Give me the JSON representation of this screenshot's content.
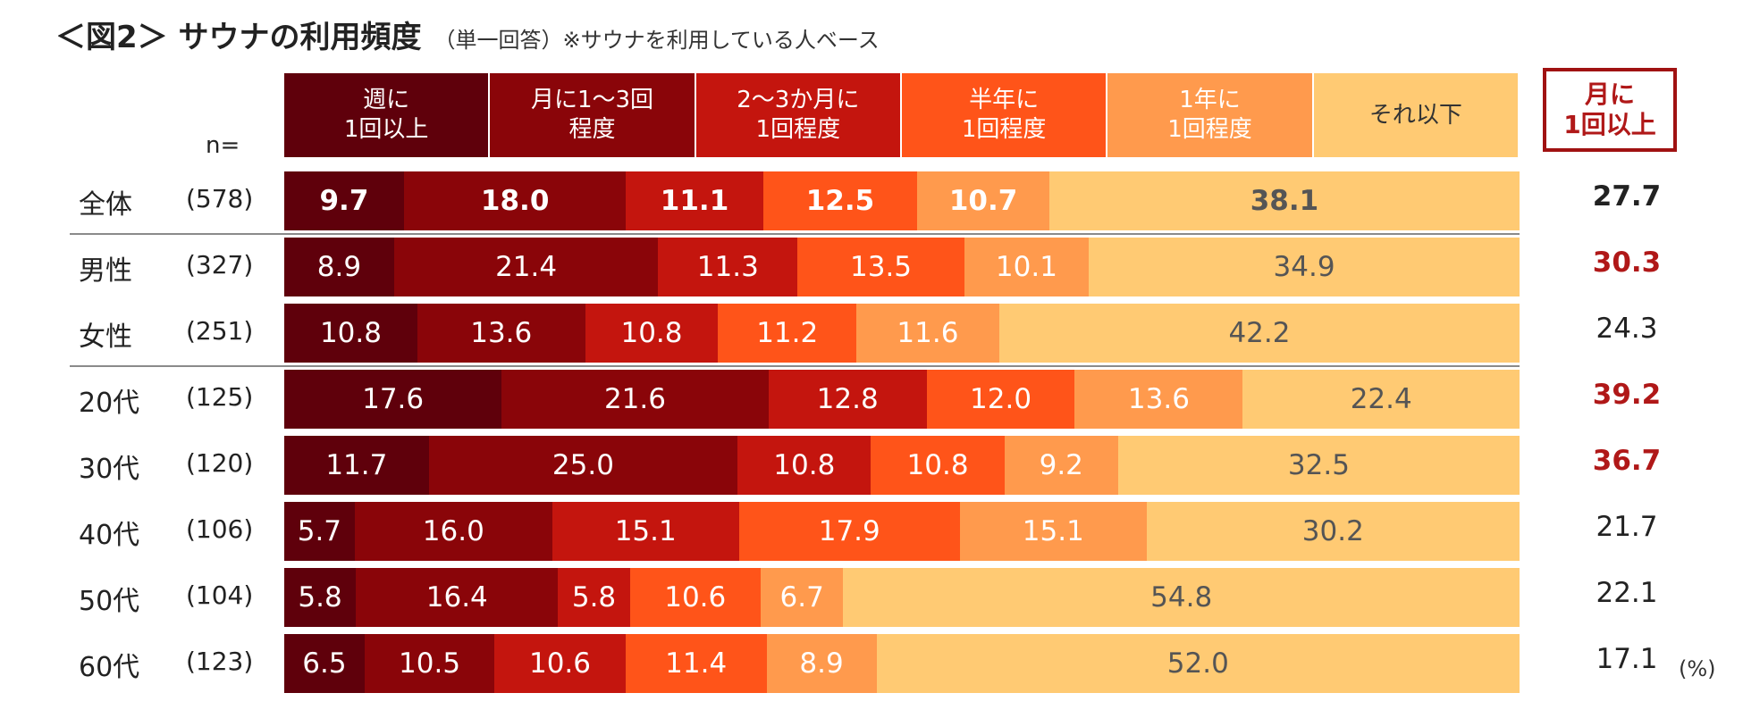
{
  "title": {
    "main": "＜図2＞ サウナの利用頻度",
    "sub": "（単一回答）※サウナを利用している人ベース"
  },
  "n_label": "n=",
  "side_header": "月に\n1回以上",
  "unit": "(%)",
  "colors": {
    "categories": [
      "#5f000b",
      "#8a0509",
      "#c4150e",
      "#ff5419",
      "#ff9a4d",
      "#ffca73"
    ],
    "legend_text": [
      "#ffffff",
      "#ffffff",
      "#ffffff",
      "#ffffff",
      "#ffffff",
      "#333333"
    ],
    "value_text": [
      "#ffffff",
      "#ffffff",
      "#ffffff",
      "#ffffff",
      "#ffffff",
      "#555555"
    ],
    "side_highlight": "#b01818",
    "side_normal": "#222222",
    "border": "#a01212"
  },
  "chart_data": {
    "type": "bar",
    "orientation": "horizontal",
    "stacked": "100%",
    "title": "＜図2＞ サウナの利用頻度",
    "unit": "%",
    "series_names": [
      "週に\n1回以上",
      "月に1～3回\n程度",
      "2～3か月に\n1回程度",
      "半年に\n1回程度",
      "1年に\n1回程度",
      "それ以下"
    ],
    "categories": [
      "全体",
      "男性",
      "女性",
      "20代",
      "30代",
      "40代",
      "50代",
      "60代"
    ],
    "n": [
      "(578)",
      "(327)",
      "(251)",
      "(125)",
      "(120)",
      "(106)",
      "(104)",
      "(123)"
    ],
    "values": [
      [
        9.7,
        18.0,
        11.1,
        12.5,
        10.7,
        38.1
      ],
      [
        8.9,
        21.4,
        11.3,
        13.5,
        10.1,
        34.9
      ],
      [
        10.8,
        13.6,
        10.8,
        11.2,
        11.6,
        42.2
      ],
      [
        17.6,
        21.6,
        12.8,
        12.0,
        13.6,
        22.4
      ],
      [
        11.7,
        25.0,
        10.8,
        10.8,
        9.2,
        32.5
      ],
      [
        5.7,
        16.0,
        15.1,
        17.9,
        15.1,
        30.2
      ],
      [
        5.8,
        16.4,
        5.8,
        10.6,
        6.7,
        54.8
      ],
      [
        6.5,
        10.5,
        10.6,
        11.4,
        8.9,
        52.0
      ]
    ],
    "monthly_or_more": [
      "27.7",
      "30.3",
      "24.3",
      "39.2",
      "36.7",
      "21.7",
      "22.1",
      "17.1"
    ],
    "monthly_highlight": [
      false,
      true,
      false,
      true,
      true,
      false,
      false,
      false
    ],
    "bold_rows": [
      0
    ]
  }
}
